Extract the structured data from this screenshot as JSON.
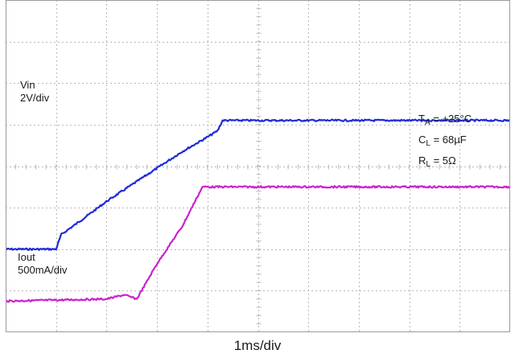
{
  "chart_data": {
    "type": "line",
    "xlabel": "1ms/div",
    "x_unit": "div",
    "y_unit": "div",
    "grid": true,
    "grid_divisions": {
      "x": 10,
      "y": 8
    },
    "series": [
      {
        "name": "Vin",
        "scale": "2V/div",
        "color": "#1f2bd6",
        "points": [
          [
            0,
            2.0
          ],
          [
            1.0,
            2.0
          ],
          [
            1.1,
            2.35
          ],
          [
            1.5,
            2.7
          ],
          [
            2.0,
            3.15
          ],
          [
            2.5,
            3.55
          ],
          [
            3.0,
            3.95
          ],
          [
            3.5,
            4.35
          ],
          [
            4.0,
            4.7
          ],
          [
            4.2,
            4.85
          ],
          [
            4.3,
            5.1
          ],
          [
            10,
            5.1
          ]
        ]
      },
      {
        "name": "Iout",
        "scale": "500mA/div",
        "color": "#cc22cc",
        "points": [
          [
            0,
            0.75
          ],
          [
            2.0,
            0.8
          ],
          [
            2.35,
            0.9
          ],
          [
            2.6,
            0.8
          ],
          [
            3.0,
            1.65
          ],
          [
            3.5,
            2.55
          ],
          [
            3.9,
            3.5
          ],
          [
            4.05,
            3.5
          ],
          [
            10,
            3.5
          ]
        ]
      }
    ],
    "annotations": {
      "vin_name": "Vin",
      "vin_scale": "2V/div",
      "iout_name": "Iout",
      "iout_scale": "500mA/div",
      "ta_main": "T",
      "ta_sub": "A",
      "ta_value": " = +25°C",
      "cl_main": "C",
      "cl_sub": "L",
      "cl_value": " = 68µF",
      "rl_main": "R",
      "rl_sub": "L",
      "rl_value": " = 5Ω"
    }
  }
}
